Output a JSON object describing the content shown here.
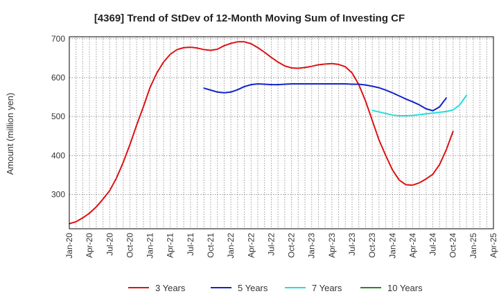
{
  "chart_data": {
    "type": "line",
    "title": "[4369]  Trend of StDev of 12-Month Moving Sum of Investing CF",
    "xlabel": "",
    "ylabel": "Amount (million yen)",
    "ylim": [
      212,
      705
    ],
    "yticks": [
      300,
      400,
      500,
      600,
      700
    ],
    "x_tick_labels": [
      "Jan-20",
      "Apr-20",
      "Jul-20",
      "Oct-20",
      "Jan-21",
      "Apr-21",
      "Jul-21",
      "Oct-21",
      "Jan-22",
      "Apr-22",
      "Jul-22",
      "Oct-22",
      "Jan-23",
      "Apr-23",
      "Jul-23",
      "Oct-23",
      "Jan-24",
      "Apr-24",
      "Jul-24",
      "Oct-24",
      "Jan-25",
      "Apr-25"
    ],
    "grid": true,
    "legend_position": "bottom",
    "series": [
      {
        "name": "3 Years",
        "color": "#dd1111",
        "points": [
          [
            "Jan-20",
            225
          ],
          [
            "Feb-20",
            230
          ],
          [
            "Mar-20",
            240
          ],
          [
            "Apr-20",
            252
          ],
          [
            "May-20",
            268
          ],
          [
            "Jun-20",
            288
          ],
          [
            "Jul-20",
            310
          ],
          [
            "Aug-20",
            342
          ],
          [
            "Sep-20",
            382
          ],
          [
            "Oct-20",
            428
          ],
          [
            "Nov-20",
            478
          ],
          [
            "Dec-20",
            525
          ],
          [
            "Jan-21",
            575
          ],
          [
            "Feb-21",
            612
          ],
          [
            "Mar-21",
            640
          ],
          [
            "Apr-21",
            660
          ],
          [
            "May-21",
            672
          ],
          [
            "Jun-21",
            677
          ],
          [
            "Jul-21",
            678
          ],
          [
            "Aug-21",
            676
          ],
          [
            "Sep-21",
            672
          ],
          [
            "Oct-21",
            670
          ],
          [
            "Nov-21",
            673
          ],
          [
            "Dec-21",
            682
          ],
          [
            "Jan-22",
            688
          ],
          [
            "Feb-22",
            692
          ],
          [
            "Mar-22",
            692
          ],
          [
            "Apr-22",
            687
          ],
          [
            "May-22",
            677
          ],
          [
            "Jun-22",
            665
          ],
          [
            "Jul-22",
            652
          ],
          [
            "Aug-22",
            640
          ],
          [
            "Sep-22",
            630
          ],
          [
            "Oct-22",
            625
          ],
          [
            "Nov-22",
            624
          ],
          [
            "Dec-22",
            626
          ],
          [
            "Jan-23",
            629
          ],
          [
            "Feb-23",
            633
          ],
          [
            "Mar-23",
            635
          ],
          [
            "Apr-23",
            636
          ],
          [
            "May-23",
            634
          ],
          [
            "Jun-23",
            628
          ],
          [
            "Jul-23",
            612
          ],
          [
            "Aug-23",
            582
          ],
          [
            "Sep-23",
            540
          ],
          [
            "Oct-23",
            490
          ],
          [
            "Nov-23",
            440
          ],
          [
            "Dec-23",
            400
          ],
          [
            "Jan-24",
            363
          ],
          [
            "Feb-24",
            337
          ],
          [
            "Mar-24",
            325
          ],
          [
            "Apr-24",
            324
          ],
          [
            "May-24",
            330
          ],
          [
            "Jun-24",
            340
          ],
          [
            "Jul-24",
            352
          ],
          [
            "Aug-24",
            377
          ],
          [
            "Sep-24",
            415
          ],
          [
            "Oct-24",
            462
          ]
        ]
      },
      {
        "name": "5 Years",
        "color": "#1122cc",
        "points": [
          [
            "Sep-21",
            573
          ],
          [
            "Oct-21",
            568
          ],
          [
            "Nov-21",
            563
          ],
          [
            "Dec-21",
            561
          ],
          [
            "Jan-22",
            563
          ],
          [
            "Feb-22",
            569
          ],
          [
            "Mar-22",
            577
          ],
          [
            "Apr-22",
            582
          ],
          [
            "May-22",
            584
          ],
          [
            "Jun-22",
            583
          ],
          [
            "Jul-22",
            582
          ],
          [
            "Aug-22",
            582
          ],
          [
            "Sep-22",
            583
          ],
          [
            "Oct-22",
            584
          ],
          [
            "Nov-22",
            584
          ],
          [
            "Dec-22",
            584
          ],
          [
            "Jan-23",
            584
          ],
          [
            "Feb-23",
            584
          ],
          [
            "Mar-23",
            584
          ],
          [
            "Apr-23",
            584
          ],
          [
            "May-23",
            584
          ],
          [
            "Jun-23",
            584
          ],
          [
            "Jul-23",
            583
          ],
          [
            "Aug-23",
            583
          ],
          [
            "Sep-23",
            581
          ],
          [
            "Oct-23",
            578
          ],
          [
            "Nov-23",
            574
          ],
          [
            "Dec-23",
            568
          ],
          [
            "Jan-24",
            561
          ],
          [
            "Feb-24",
            553
          ],
          [
            "Mar-24",
            545
          ],
          [
            "Apr-24",
            538
          ],
          [
            "May-24",
            530
          ],
          [
            "Jun-24",
            520
          ],
          [
            "Jul-24",
            515
          ],
          [
            "Aug-24",
            525
          ],
          [
            "Sep-24",
            548
          ]
        ]
      },
      {
        "name": "7 Years",
        "color": "#22dddd",
        "points": [
          [
            "Oct-23",
            516
          ],
          [
            "Nov-23",
            512
          ],
          [
            "Dec-23",
            508
          ],
          [
            "Jan-24",
            504
          ],
          [
            "Feb-24",
            502
          ],
          [
            "Mar-24",
            502
          ],
          [
            "Apr-24",
            503
          ],
          [
            "May-24",
            505
          ],
          [
            "Jun-24",
            507
          ],
          [
            "Jul-24",
            509
          ],
          [
            "Aug-24",
            511
          ],
          [
            "Sep-24",
            513
          ],
          [
            "Oct-24",
            517
          ],
          [
            "Nov-24",
            530
          ],
          [
            "Dec-24",
            555
          ]
        ]
      },
      {
        "name": "10 Years",
        "color": "#228822",
        "points": []
      }
    ]
  }
}
